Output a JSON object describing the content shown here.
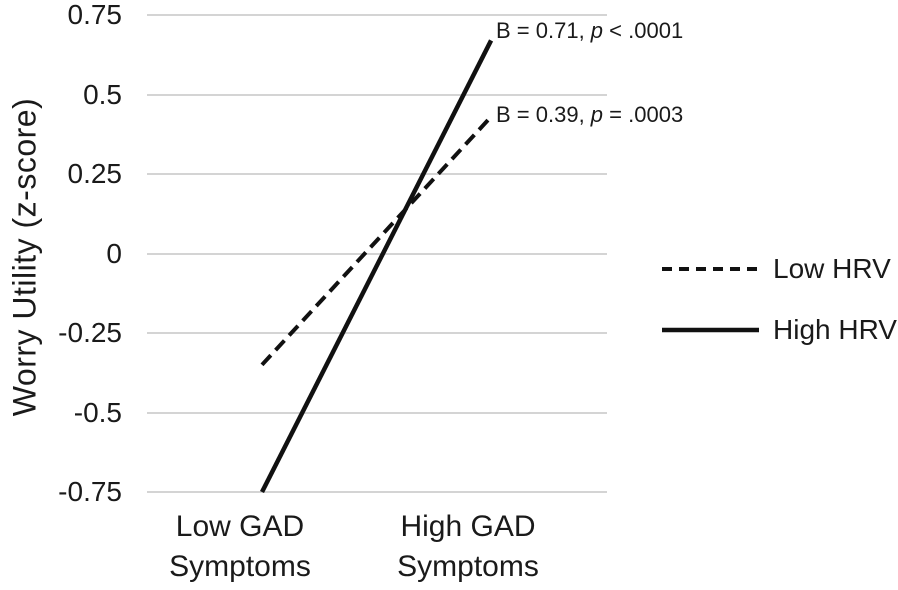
{
  "chart_data": {
    "type": "line",
    "ylabel": "Worry Utility (z-score)",
    "xlabel": "",
    "ylim": [
      -0.75,
      0.75
    ],
    "yticks": [
      0.75,
      0.5,
      0.25,
      0,
      -0.25,
      -0.5,
      -0.75
    ],
    "ytick_labels": [
      "0.75",
      "0.5",
      "0.25",
      "0",
      "-0.25",
      "-0.5",
      "-0.75"
    ],
    "grid": true,
    "legend_position": "right",
    "categories": [
      "Low GAD Symptoms",
      "High GAD Symptoms"
    ],
    "category_lines": [
      [
        "Low GAD",
        "Symptoms"
      ],
      [
        "High GAD",
        "Symptoms"
      ]
    ],
    "series": [
      {
        "name": "Low HRV",
        "style": "dashed",
        "values": [
          -0.35,
          0.43
        ],
        "annotation": {
          "prefix": "B = 0.39, ",
          "p": "p",
          "suffix": " = .0003"
        }
      },
      {
        "name": "High HRV",
        "style": "solid",
        "values": [
          -0.75,
          0.67
        ],
        "annotation": {
          "prefix": "B = 0.71, ",
          "p": "p",
          "suffix": " < .0001"
        }
      }
    ],
    "colors": {
      "line": "#111111",
      "grid": "#d4d4d4",
      "text": "#1a1a1a",
      "background": "#ffffff"
    }
  }
}
